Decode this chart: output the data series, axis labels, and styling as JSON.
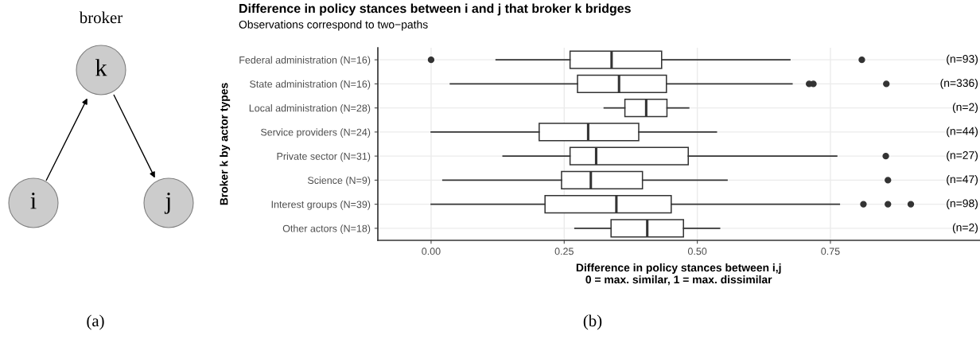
{
  "chart_data": [
    {
      "type": "other",
      "annotations": [
        "broker",
        "k",
        "i",
        "j",
        "(a)"
      ]
    },
    {
      "type": "box",
      "orientation": "horizontal",
      "title": "Difference in policy stances between i and j that broker k bridges",
      "subtitle": "Observations correspond to two−paths",
      "xlabel": "Difference in policy stances between i,j\n0 = max. similar, 1 = max. dissimilar",
      "ylabel": "Broker k by actor types",
      "categories": [
        "Federal administration (N=16)",
        "State administration (N=16)",
        "Local administration (N=28)",
        "Service providers (N=24)",
        "Private sector (N=31)",
        "Science (N=9)",
        "Interest groups (N=39)",
        "Other actors (N=18)"
      ],
      "boxes": [
        {
          "low": 0.122,
          "q1": 0.261,
          "median": 0.339,
          "q3": 0.433,
          "high": 0.674,
          "outliers": [
            0.0,
            0.809
          ]
        },
        {
          "low": 0.036,
          "q1": 0.275,
          "median": 0.353,
          "q3": 0.442,
          "high": 0.678,
          "outliers": [
            0.71,
            0.718,
            0.855
          ]
        },
        {
          "low": 0.325,
          "q1": 0.364,
          "median": 0.404,
          "q3": 0.443,
          "high": 0.484
        },
        {
          "low": 0.0,
          "q1": 0.203,
          "median": 0.295,
          "q3": 0.39,
          "high": 0.536
        },
        {
          "low": 0.135,
          "q1": 0.261,
          "median": 0.31,
          "q3": 0.483,
          "high": 0.762,
          "outliers": [
            0.854
          ]
        },
        {
          "low": 0.022,
          "q1": 0.245,
          "median": 0.3,
          "q3": 0.397,
          "high": 0.556,
          "outliers": [
            0.858
          ]
        },
        {
          "low": 0.0,
          "q1": 0.214,
          "median": 0.348,
          "q3": 0.451,
          "high": 0.767,
          "outliers": [
            0.812,
            0.858,
            0.901
          ]
        },
        {
          "low": 0.27,
          "q1": 0.338,
          "median": 0.406,
          "q3": 0.474,
          "high": 0.542
        }
      ],
      "color": "#333333",
      "xlim": [
        -0.1,
        1.03
      ],
      "xticks": [
        {
          "value": 0,
          "label": "0.00"
        },
        {
          "value": 0.25,
          "label": "0.25"
        },
        {
          "value": 0.5,
          "label": "0.50"
        },
        {
          "value": 0.75,
          "label": "0.75"
        }
      ],
      "grid": true,
      "annotations": [
        "(n=93)",
        "(n=336)",
        "(n=2)",
        "(n=44)",
        "(n=27)",
        "(n=47)",
        "(n=98)",
        "(n=2)",
        "(b)"
      ]
    }
  ]
}
